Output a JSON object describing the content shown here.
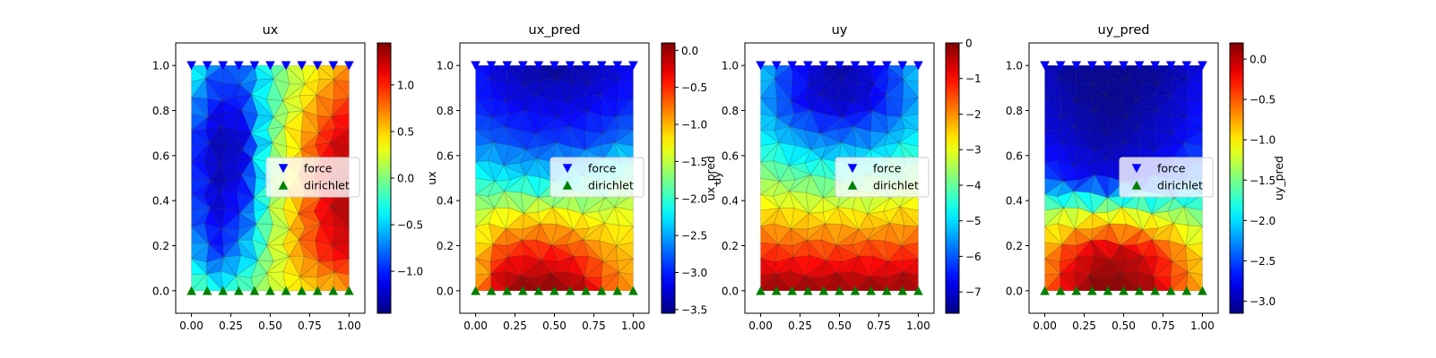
{
  "chart_data": [
    {
      "type": "heatmap",
      "title": "ux",
      "xlabel": "",
      "ylabel": "",
      "colorbar_label": "",
      "xlim": [
        -0.1,
        1.1
      ],
      "ylim": [
        -0.1,
        1.1
      ],
      "xticks": [
        0.0,
        0.25,
        0.5,
        0.75,
        1.0
      ],
      "xtick_labels": [
        "0.00",
        "0.25",
        "0.50",
        "0.75",
        "1.00"
      ],
      "yticks": [
        0.0,
        0.2,
        0.4,
        0.6,
        0.8,
        1.0
      ],
      "ytick_labels": [
        "0.0",
        "0.2",
        "0.4",
        "0.6",
        "0.8",
        "1.0"
      ],
      "colorbar_range": [
        -1.45,
        1.45
      ],
      "colorbar_ticks": [
        -1.0,
        -0.5,
        0.0,
        0.5,
        1.0
      ],
      "colorbar_tick_labels": [
        "−1.0",
        "−0.5",
        "0.0",
        "0.5",
        "1.0"
      ],
      "field_grid": [
        [
          -0.2,
          -0.8,
          -0.8,
          -0.2,
          0.2,
          0.4,
          0.7
        ],
        [
          -0.6,
          -1.1,
          -1.0,
          -0.2,
          0.3,
          0.7,
          1.0
        ],
        [
          -0.9,
          -1.3,
          -1.2,
          -0.1,
          0.5,
          1.0,
          1.3
        ],
        [
          -0.9,
          -1.3,
          -1.1,
          -0.1,
          0.5,
          1.1,
          1.35
        ],
        [
          -0.8,
          -1.2,
          -0.9,
          0.0,
          0.6,
          1.1,
          1.35
        ],
        [
          -0.5,
          -1.0,
          -0.6,
          0.1,
          0.6,
          1.0,
          1.2
        ],
        [
          0.0,
          -0.3,
          -0.1,
          0.2,
          0.4,
          0.5,
          0.6
        ]
      ],
      "colormap": "jet",
      "grid": false,
      "legend_position": "center-right"
    },
    {
      "type": "heatmap",
      "title": "ux_pred",
      "xlabel": "",
      "ylabel": "ux",
      "colorbar_label": "ux_pred",
      "xlim": [
        -0.1,
        1.1
      ],
      "ylim": [
        -0.1,
        1.1
      ],
      "xticks": [
        0.0,
        0.25,
        0.5,
        0.75,
        1.0
      ],
      "xtick_labels": [
        "0.00",
        "0.25",
        "0.50",
        "0.75",
        "1.00"
      ],
      "yticks": [
        0.0,
        0.2,
        0.4,
        0.6,
        0.8,
        1.0
      ],
      "ytick_labels": [
        "0.0",
        "0.2",
        "0.4",
        "0.6",
        "0.8",
        "1.0"
      ],
      "colorbar_range": [
        -3.55,
        0.1
      ],
      "colorbar_ticks": [
        -3.5,
        -3.0,
        -2.5,
        -2.0,
        -1.5,
        -1.0,
        -0.5,
        0.0
      ],
      "colorbar_tick_labels": [
        "−3.5",
        "−3.0",
        "−2.5",
        "−2.0",
        "−1.5",
        "−1.0",
        "−0.5",
        "0.0"
      ],
      "field_grid": [
        [
          -3.0,
          -3.3,
          -3.4,
          -3.5,
          -3.4,
          -3.3,
          -3.1
        ],
        [
          -3.0,
          -3.1,
          -3.2,
          -3.2,
          -3.2,
          -3.1,
          -3.0
        ],
        [
          -2.7,
          -2.8,
          -2.9,
          -2.9,
          -2.9,
          -2.8,
          -2.6
        ],
        [
          -2.1,
          -2.2,
          -2.3,
          -2.3,
          -2.2,
          -2.0,
          -1.8
        ],
        [
          -1.5,
          -1.3,
          -1.2,
          -1.2,
          -1.3,
          -1.4,
          -1.3
        ],
        [
          -1.2,
          -0.5,
          -0.4,
          -0.4,
          -0.6,
          -0.9,
          -1.1
        ],
        [
          -1.0,
          0.0,
          0.1,
          0.1,
          0.0,
          -0.6,
          -0.9
        ]
      ],
      "colormap": "jet",
      "grid": false,
      "legend_position": "center-right"
    },
    {
      "type": "heatmap",
      "title": "uy",
      "xlabel": "",
      "ylabel": "uy",
      "colorbar_label": "",
      "xlim": [
        -0.1,
        1.1
      ],
      "ylim": [
        -0.1,
        1.1
      ],
      "xticks": [
        0.0,
        0.25,
        0.5,
        0.75,
        1.0
      ],
      "xtick_labels": [
        "0.00",
        "0.25",
        "0.50",
        "0.75",
        "1.00"
      ],
      "yticks": [
        0.0,
        0.2,
        0.4,
        0.6,
        0.8,
        1.0
      ],
      "ytick_labels": [
        "0.0",
        "0.2",
        "0.4",
        "0.6",
        "0.8",
        "1.0"
      ],
      "colorbar_range": [
        -7.6,
        0.0
      ],
      "colorbar_ticks": [
        -7,
        -6,
        -5,
        -4,
        -3,
        -2,
        -1,
        0
      ],
      "colorbar_tick_labels": [
        "−7",
        "−6",
        "−5",
        "−4",
        "−3",
        "−2",
        "−1",
        "0"
      ],
      "field_grid": [
        [
          -5.0,
          -6.2,
          -7.0,
          -7.4,
          -7.0,
          -6.2,
          -5.0
        ],
        [
          -5.3,
          -6.3,
          -6.9,
          -7.1,
          -6.9,
          -6.3,
          -5.3
        ],
        [
          -4.7,
          -5.2,
          -5.6,
          -5.8,
          -5.6,
          -5.2,
          -4.7
        ],
        [
          -3.6,
          -3.9,
          -4.1,
          -4.2,
          -4.1,
          -3.9,
          -3.6
        ],
        [
          -2.5,
          -2.6,
          -2.7,
          -2.7,
          -2.7,
          -2.6,
          -2.5
        ],
        [
          -1.2,
          -1.3,
          -1.3,
          -1.3,
          -1.3,
          -1.3,
          -1.2
        ],
        [
          -0.1,
          -0.1,
          -0.1,
          -0.1,
          -0.1,
          -0.1,
          -0.1
        ]
      ],
      "colormap": "jet",
      "grid": false,
      "legend_position": "center-right"
    },
    {
      "type": "heatmap",
      "title": "uy_pred",
      "xlabel": "",
      "ylabel": "",
      "colorbar_label": "uy_pred",
      "xlim": [
        -0.1,
        1.1
      ],
      "ylim": [
        -0.1,
        1.1
      ],
      "xticks": [
        0.0,
        0.25,
        0.5,
        0.75,
        1.0
      ],
      "xtick_labels": [
        "0.00",
        "0.25",
        "0.50",
        "0.75",
        "1.00"
      ],
      "yticks": [
        0.0,
        0.2,
        0.4,
        0.6,
        0.8,
        1.0
      ],
      "ytick_labels": [
        "0.0",
        "0.2",
        "0.4",
        "0.6",
        "0.8",
        "1.0"
      ],
      "colorbar_range": [
        -3.15,
        0.2
      ],
      "colorbar_ticks": [
        -3.0,
        -2.5,
        -2.0,
        -1.5,
        -1.0,
        -0.5,
        0.0
      ],
      "colorbar_tick_labels": [
        "−3.0",
        "−2.5",
        "−2.0",
        "−1.5",
        "−1.0",
        "−0.5",
        "0.0"
      ],
      "field_grid": [
        [
          -2.9,
          -3.1,
          -3.1,
          -3.1,
          -3.1,
          -3.0,
          -2.8
        ],
        [
          -2.9,
          -3.0,
          -3.1,
          -3.1,
          -3.0,
          -2.9,
          -2.7
        ],
        [
          -2.8,
          -2.9,
          -3.0,
          -3.0,
          -2.9,
          -2.8,
          -2.6
        ],
        [
          -2.5,
          -2.7,
          -2.8,
          -2.8,
          -2.7,
          -2.5,
          -2.3
        ],
        [
          -1.3,
          -1.2,
          -1.1,
          -1.1,
          -1.2,
          -1.3,
          -1.5
        ],
        [
          -0.8,
          -0.3,
          0.0,
          0.0,
          -0.2,
          -0.6,
          -1.0
        ],
        [
          -0.6,
          0.0,
          0.2,
          0.2,
          0.1,
          -0.4,
          -0.8
        ]
      ],
      "colormap": "jet",
      "grid": false,
      "legend_position": "center-right"
    }
  ],
  "markers": {
    "x_values": [
      0.0,
      0.1,
      0.2,
      0.3,
      0.4,
      0.5,
      0.6,
      0.7,
      0.8,
      0.9,
      1.0
    ],
    "force": {
      "label": "force",
      "y": 1.0,
      "color": "#0000ff",
      "marker": "triangle-down"
    },
    "dirichlet": {
      "label": "dirichlet",
      "y": 0.0,
      "color": "#008000",
      "marker": "triangle-up"
    }
  },
  "mesh": {
    "cols": 10,
    "rows": 14,
    "edge_color": "#000000"
  }
}
